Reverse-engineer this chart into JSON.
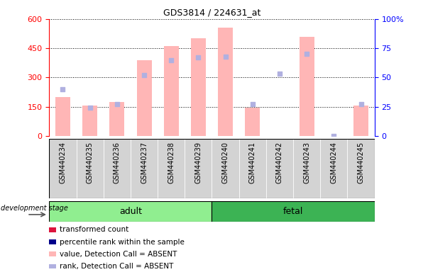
{
  "title": "GDS3814 / 224631_at",
  "samples": [
    "GSM440234",
    "GSM440235",
    "GSM440236",
    "GSM440237",
    "GSM440238",
    "GSM440239",
    "GSM440240",
    "GSM440241",
    "GSM440242",
    "GSM440243",
    "GSM440244",
    "GSM440245"
  ],
  "bar_heights": [
    200,
    155,
    175,
    390,
    460,
    500,
    555,
    145,
    0,
    510,
    0,
    155
  ],
  "rank_pct": [
    40,
    24,
    27,
    52,
    65,
    67,
    68,
    27,
    53,
    70,
    0,
    27
  ],
  "bar_color": "#ffb6b6",
  "rank_color": "#b0b0e0",
  "ylim_left": [
    0,
    600
  ],
  "ylim_right": [
    0,
    100
  ],
  "yticks_left": [
    0,
    150,
    300,
    450,
    600
  ],
  "yticks_right": [
    0,
    25,
    50,
    75,
    100
  ],
  "adult_color": "#90EE90",
  "fetal_color": "#3CB354",
  "gray_color": "#d3d3d3",
  "legend_items": [
    {
      "label": "transformed count",
      "color": "#dc143c"
    },
    {
      "label": "percentile rank within the sample",
      "color": "#00008b"
    },
    {
      "label": "value, Detection Call = ABSENT",
      "color": "#ffb6b6"
    },
    {
      "label": "rank, Detection Call = ABSENT",
      "color": "#b0b0e0"
    }
  ]
}
